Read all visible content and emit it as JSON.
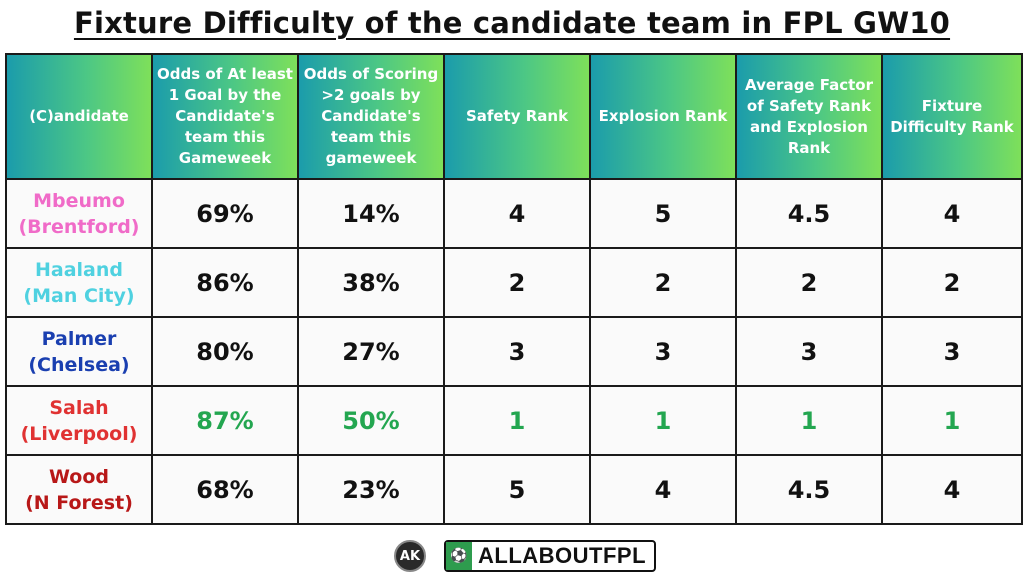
{
  "title": "Fixture Difficulty of the candidate team in FPL GW10",
  "headers": [
    "(C)andidate",
    "Odds of At least 1 Goal by the Candidate's team this Gameweek",
    "Odds of Scoring >2 goals by Candidate's team this gameweek",
    "Safety Rank",
    "Explosion Rank",
    "Average Factor of Safety Rank and Explosion Rank",
    "Fixture Difficulty Rank"
  ],
  "rows": [
    {
      "name": "Mbeumo",
      "team": "(Brentford)",
      "color": "#f06bc8",
      "odds1": "69%",
      "odds2": "14%",
      "safety": "4",
      "explosion": "5",
      "avg": "4.5",
      "fdr": "4",
      "highlight": false
    },
    {
      "name": "Haaland",
      "team": "(Man City)",
      "color": "#4fd1e0",
      "odds1": "86%",
      "odds2": "38%",
      "safety": "2",
      "explosion": "2",
      "avg": "2",
      "fdr": "2",
      "highlight": false
    },
    {
      "name": "Palmer",
      "team": "(Chelsea)",
      "color": "#1a3fb0",
      "odds1": "80%",
      "odds2": "27%",
      "safety": "3",
      "explosion": "3",
      "avg": "3",
      "fdr": "3",
      "highlight": false
    },
    {
      "name": "Salah",
      "team": "(Liverpool)",
      "color": "#e03232",
      "odds1": "87%",
      "odds2": "50%",
      "safety": "1",
      "explosion": "1",
      "avg": "1",
      "fdr": "1",
      "highlight": true
    },
    {
      "name": "Wood",
      "team": "(N Forest)",
      "color": "#b81818",
      "odds1": "68%",
      "odds2": "23%",
      "safety": "5",
      "explosion": "4",
      "avg": "4.5",
      "fdr": "4",
      "highlight": false
    }
  ],
  "highlight_color": "#23a650",
  "footer": {
    "ak_logo": "AK",
    "brand": "ALLABOUTFPL",
    "brand_icon": "football-field-icon"
  }
}
